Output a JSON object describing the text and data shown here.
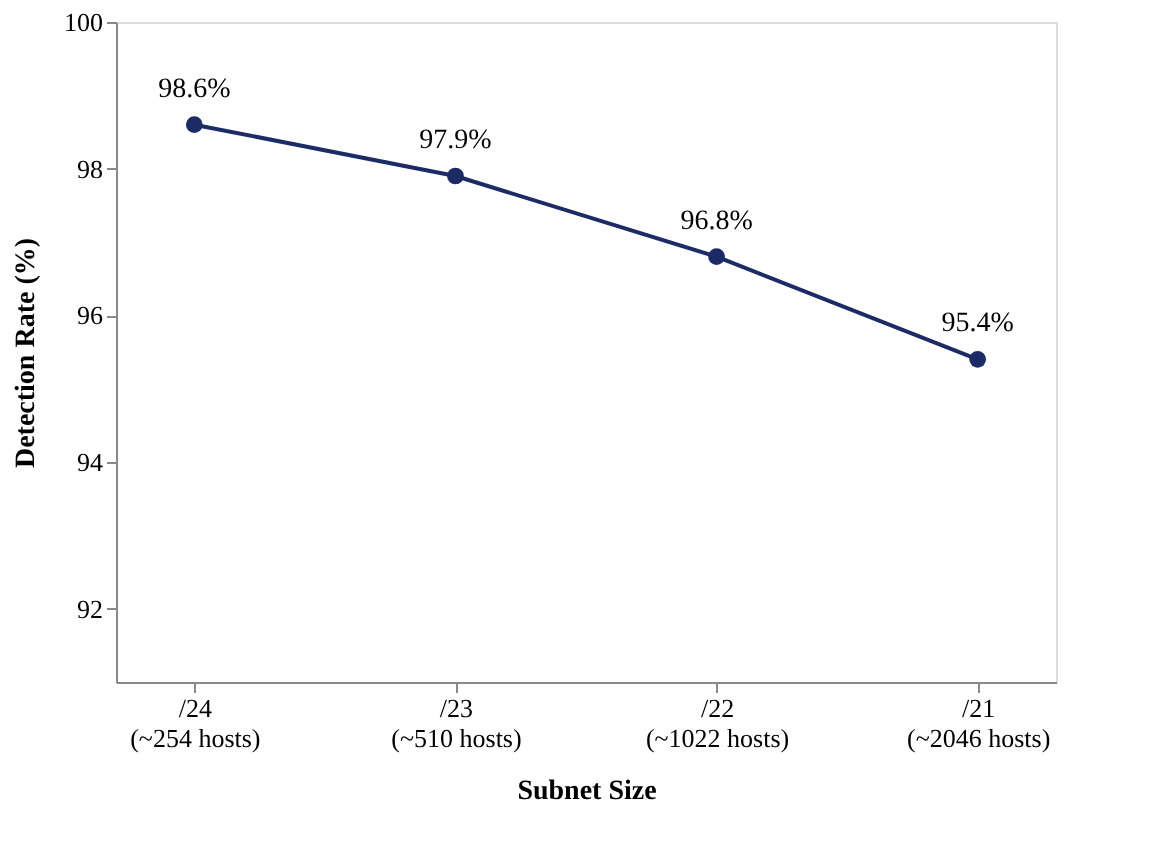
{
  "chart_data": {
    "type": "line",
    "xlabel": "Subnet Size",
    "ylabel": "Detection Rate (%)",
    "categories": [
      "/24\n(~254 hosts)",
      "/23\n(~510 hosts)",
      "/22\n(~1022 hosts)",
      "/21\n(~2046 hosts)"
    ],
    "series": [
      {
        "color": "#1c2a66",
        "values": [
          98.6,
          97.9,
          96.8,
          95.4
        ],
        "value_labels": [
          "98.6%",
          "97.9%",
          "96.8%",
          "95.4%"
        ]
      }
    ],
    "ylim": [
      91,
      100
    ],
    "yticks": [
      92,
      94,
      96,
      98,
      100
    ],
    "grid": false,
    "legend": false,
    "marker": "circle",
    "line_style": "solid"
  }
}
